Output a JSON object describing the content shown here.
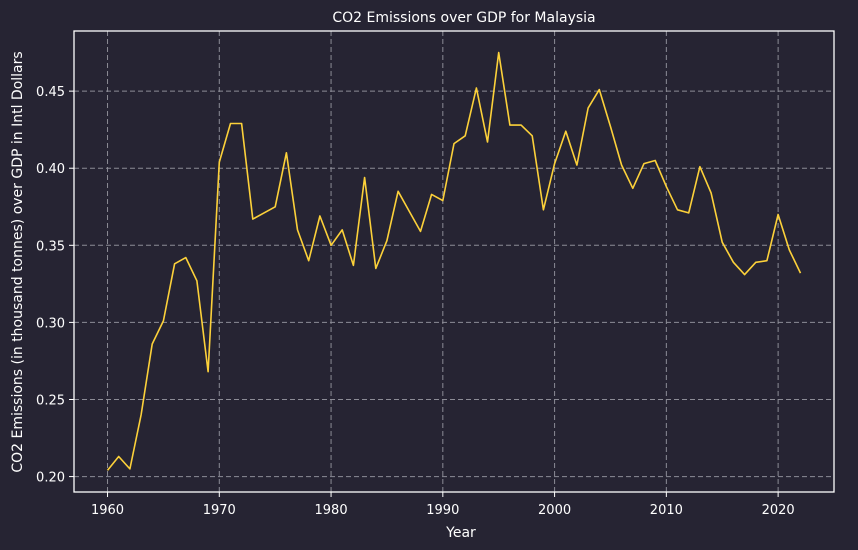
{
  "chart_data": {
    "type": "line",
    "title": "CO2 Emissions over GDP for Malaysia",
    "xlabel": "Year",
    "ylabel": "CO2 Emissions (in thousand tonnes) over GDP in Intl Dollars",
    "xlim": [
      1957,
      2025
    ],
    "ylim": [
      0.19,
      0.489
    ],
    "xticks": [
      1960,
      1970,
      1980,
      1990,
      2000,
      2010,
      2020
    ],
    "yticks": [
      0.2,
      0.25,
      0.3,
      0.35,
      0.4,
      0.45
    ],
    "xtick_labels": [
      "1960",
      "1970",
      "1980",
      "1990",
      "2000",
      "2010",
      "2020"
    ],
    "ytick_labels": [
      "0.20",
      "0.25",
      "0.30",
      "0.35",
      "0.40",
      "0.45"
    ],
    "grid": true,
    "grid_style": "dashed",
    "background": "#262433",
    "series": [
      {
        "color": "#fcd13a",
        "x": [
          1960,
          1961,
          1962,
          1963,
          1964,
          1965,
          1966,
          1967,
          1968,
          1969,
          1970,
          1971,
          1972,
          1973,
          1974,
          1975,
          1976,
          1977,
          1978,
          1979,
          1980,
          1981,
          1982,
          1983,
          1984,
          1985,
          1986,
          1987,
          1988,
          1989,
          1990,
          1991,
          1992,
          1993,
          1994,
          1995,
          1996,
          1997,
          1998,
          1999,
          2000,
          2001,
          2002,
          2003,
          2004,
          2005,
          2006,
          2007,
          2008,
          2009,
          2010,
          2011,
          2012,
          2013,
          2014,
          2015,
          2016,
          2017,
          2018,
          2019,
          2020,
          2021,
          2022
        ],
        "values": [
          0.204,
          0.213,
          0.205,
          0.24,
          0.286,
          0.301,
          0.338,
          0.342,
          0.327,
          0.268,
          0.404,
          0.429,
          0.429,
          0.367,
          0.371,
          0.375,
          0.41,
          0.36,
          0.34,
          0.369,
          0.35,
          0.36,
          0.337,
          0.394,
          0.335,
          0.353,
          0.385,
          0.372,
          0.359,
          0.383,
          0.379,
          0.416,
          0.421,
          0.452,
          0.417,
          0.475,
          0.428,
          0.428,
          0.421,
          0.373,
          0.403,
          0.424,
          0.402,
          0.439,
          0.451,
          0.427,
          0.402,
          0.387,
          0.403,
          0.405,
          0.388,
          0.373,
          0.371,
          0.401,
          0.384,
          0.352,
          0.339,
          0.331,
          0.339,
          0.34,
          0.37,
          0.347,
          0.332
        ]
      }
    ]
  }
}
